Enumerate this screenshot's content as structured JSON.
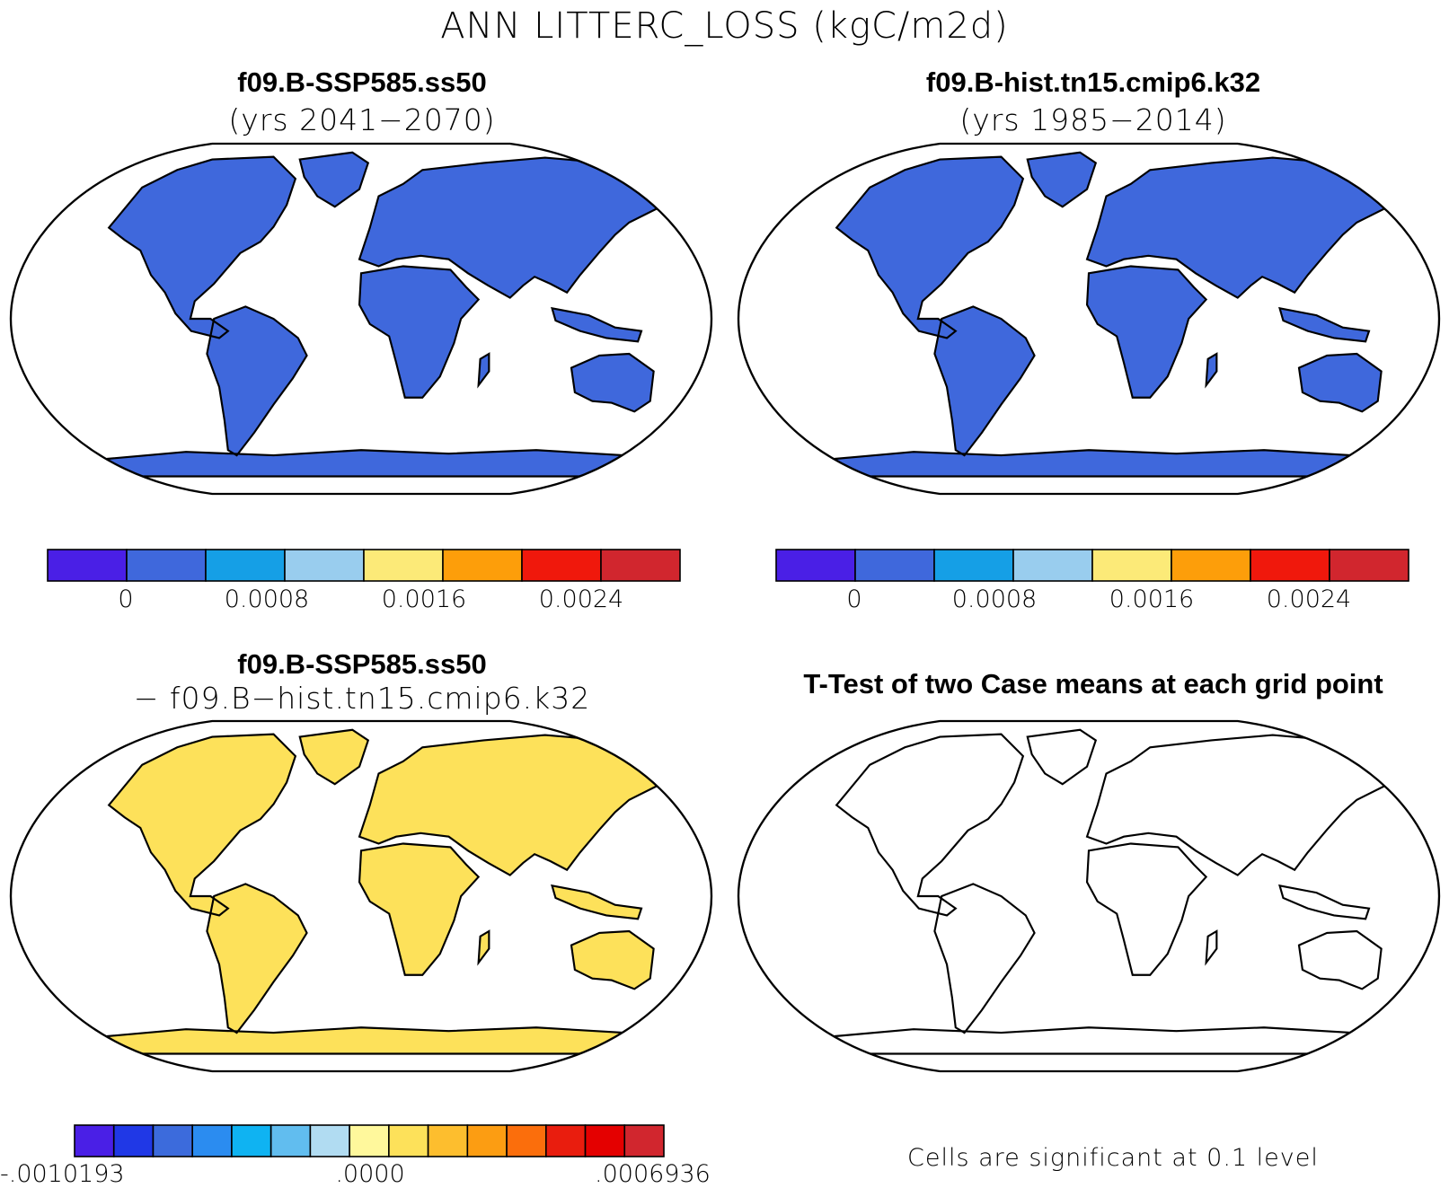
{
  "figure": {
    "title": "ANN LITTERC_LOSS (kgC/m2d)"
  },
  "panels": [
    {
      "id": "top-left",
      "case_name": "f09.B-SSP585.ss50",
      "subtitle": "(yrs 2041−2070)",
      "colorbar": {
        "colors": [
          "#4a1fe6",
          "#3f68dc",
          "#159fe6",
          "#99cdee",
          "#fcea78",
          "#fd9e0a",
          "#f0180c",
          "#d1262e"
        ],
        "ticks": [
          "0",
          "0.0008",
          "0.0016",
          "0.0024"
        ]
      }
    },
    {
      "id": "top-right",
      "case_name": "f09.B-hist.tn15.cmip6.k32",
      "subtitle": "(yrs 1985−2014)",
      "colorbar": {
        "colors": [
          "#4a1fe6",
          "#3f68dc",
          "#159fe6",
          "#99cdee",
          "#fcea78",
          "#fd9e0a",
          "#f0180c",
          "#d1262e"
        ],
        "ticks": [
          "0",
          "0.0008",
          "0.0016",
          "0.0024"
        ]
      }
    },
    {
      "id": "bottom-left",
      "case_name": "f09.B-SSP585.ss50",
      "subtitle": "− f09.B−hist.tn15.cmip6.k32",
      "colorbar": {
        "colors": [
          "#4a1fe6",
          "#2038e6",
          "#3c6bdc",
          "#2b8cf0",
          "#0fb3f2",
          "#61bdef",
          "#b1dcf2",
          "#fff89c",
          "#fde15a",
          "#fdbe2e",
          "#fc9d12",
          "#fb6e0c",
          "#e91d0e",
          "#e40000",
          "#d1262e"
        ],
        "ticks": [
          "-.0010193",
          ".0000",
          ".0006936"
        ]
      }
    },
    {
      "id": "bottom-right",
      "case_name": "T-Test of two Case means at each grid point",
      "significance_note": "Cells are significant at 0.1 level",
      "significant_color": "#f20808"
    }
  ],
  "map_colors": {
    "ocean": "#ffffff",
    "coast": "#000000"
  }
}
